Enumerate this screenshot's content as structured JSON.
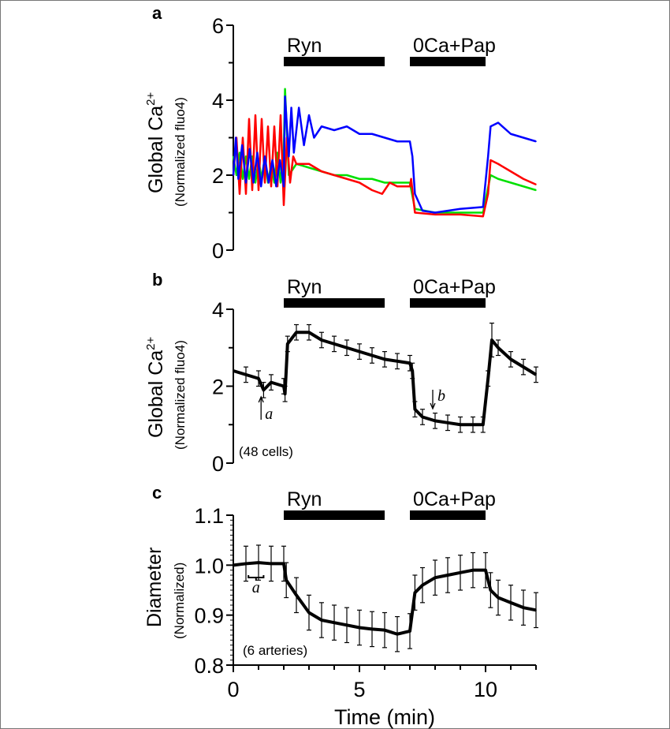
{
  "chart_data": [
    {
      "panel": "a",
      "type": "line",
      "ylabel": "Global Ca",
      "ylabel_sup": "2+",
      "ylabel_sub": "(Normalized fluo4)",
      "xlim": [
        0,
        12
      ],
      "ylim": [
        0,
        6
      ],
      "yticks": [
        "0",
        "2",
        "4",
        "6"
      ],
      "conditions": [
        {
          "label": "Ryn",
          "start": 2,
          "end": 6
        },
        {
          "label": "0Ca+Pap",
          "start": 7,
          "end": 10
        }
      ],
      "series": [
        {
          "color": "#00e000",
          "points": [
            [
              0,
              2.5
            ],
            [
              0.125,
              2.0
            ],
            [
              0.25,
              2.6
            ],
            [
              0.375,
              1.9
            ],
            [
              0.5,
              2.5
            ],
            [
              0.625,
              1.9
            ],
            [
              0.75,
              2.5
            ],
            [
              0.875,
              1.8
            ],
            [
              1,
              2.4
            ],
            [
              1.125,
              1.9
            ],
            [
              1.25,
              2.5
            ],
            [
              1.375,
              1.8
            ],
            [
              1.5,
              2.3
            ],
            [
              1.625,
              1.8
            ],
            [
              1.75,
              2.6
            ],
            [
              1.875,
              1.8
            ],
            [
              2,
              2.7
            ],
            [
              2.05,
              4.3
            ],
            [
              2.2,
              2.0
            ],
            [
              2.5,
              2.3
            ],
            [
              3,
              2.2
            ],
            [
              3.5,
              2.1
            ],
            [
              4,
              2.0
            ],
            [
              4.5,
              2.0
            ],
            [
              5,
              1.9
            ],
            [
              5.5,
              1.9
            ],
            [
              6,
              1.8
            ],
            [
              6.5,
              1.8
            ],
            [
              7,
              1.8
            ],
            [
              7.2,
              1.1
            ],
            [
              8,
              1.0
            ],
            [
              9,
              1.0
            ],
            [
              9.9,
              1.0
            ],
            [
              10.2,
              2.0
            ],
            [
              10.5,
              1.9
            ],
            [
              11,
              1.8
            ],
            [
              11.5,
              1.7
            ],
            [
              12,
              1.6
            ]
          ]
        },
        {
          "color": "#ff0000",
          "points": [
            [
              0,
              2.0
            ],
            [
              0.125,
              3.0
            ],
            [
              0.25,
              1.5
            ],
            [
              0.375,
              3.0
            ],
            [
              0.5,
              1.5
            ],
            [
              0.625,
              3.5
            ],
            [
              0.75,
              1.6
            ],
            [
              0.875,
              3.6
            ],
            [
              1,
              1.6
            ],
            [
              1.125,
              3.5
            ],
            [
              1.25,
              1.8
            ],
            [
              1.375,
              3.3
            ],
            [
              1.5,
              1.7
            ],
            [
              1.625,
              3.3
            ],
            [
              1.75,
              1.7
            ],
            [
              1.875,
              3.6
            ],
            [
              2,
              1.2
            ],
            [
              2.125,
              3.0
            ],
            [
              2.25,
              1.8
            ],
            [
              2.375,
              2.5
            ],
            [
              2.5,
              2.3
            ],
            [
              3,
              2.3
            ],
            [
              3.5,
              2.1
            ],
            [
              4,
              2.0
            ],
            [
              4.5,
              1.9
            ],
            [
              5,
              1.8
            ],
            [
              5.5,
              1.6
            ],
            [
              5.9,
              1.5
            ],
            [
              6.2,
              1.8
            ],
            [
              6.5,
              1.7
            ],
            [
              7,
              1.7
            ],
            [
              7.05,
              1.9
            ],
            [
              7.2,
              1.0
            ],
            [
              8,
              0.95
            ],
            [
              9,
              0.95
            ],
            [
              9.9,
              0.9
            ],
            [
              10.1,
              1.5
            ],
            [
              10.2,
              2.4
            ],
            [
              10.5,
              2.3
            ],
            [
              11,
              2.1
            ],
            [
              11.5,
              1.9
            ],
            [
              12,
              1.75
            ]
          ]
        },
        {
          "color": "#0000ff",
          "points": [
            [
              0,
              2.0
            ],
            [
              0.1,
              3.0
            ],
            [
              0.2,
              1.9
            ],
            [
              0.35,
              2.8
            ],
            [
              0.5,
              1.8
            ],
            [
              0.65,
              2.7
            ],
            [
              0.8,
              1.8
            ],
            [
              0.95,
              2.6
            ],
            [
              1.1,
              1.7
            ],
            [
              1.25,
              2.5
            ],
            [
              1.4,
              1.8
            ],
            [
              1.55,
              2.4
            ],
            [
              1.7,
              1.7
            ],
            [
              1.85,
              2.4
            ],
            [
              2,
              1.7
            ],
            [
              2.05,
              4.1
            ],
            [
              2.2,
              2.5
            ],
            [
              2.3,
              3.8
            ],
            [
              2.4,
              2.6
            ],
            [
              2.6,
              3.8
            ],
            [
              2.8,
              2.8
            ],
            [
              3,
              3.6
            ],
            [
              3.2,
              3.0
            ],
            [
              3.5,
              3.3
            ],
            [
              4,
              3.2
            ],
            [
              4.5,
              3.3
            ],
            [
              5,
              3.1
            ],
            [
              5.5,
              3.1
            ],
            [
              6,
              3.0
            ],
            [
              6.5,
              2.9
            ],
            [
              7,
              2.9
            ],
            [
              7.1,
              2.5
            ],
            [
              7.2,
              1.5
            ],
            [
              7.5,
              1.05
            ],
            [
              8,
              1.0
            ],
            [
              9,
              1.1
            ],
            [
              9.9,
              1.15
            ],
            [
              10.1,
              2.5
            ],
            [
              10.2,
              3.3
            ],
            [
              10.5,
              3.4
            ],
            [
              11,
              3.1
            ],
            [
              11.5,
              3.0
            ],
            [
              12,
              2.9
            ]
          ]
        }
      ]
    },
    {
      "panel": "b",
      "type": "line",
      "ylabel": "Global Ca",
      "ylabel_sup": "2+",
      "ylabel_sub": "(Normalized fluo4)",
      "xlim": [
        0,
        12
      ],
      "ylim": [
        0,
        4
      ],
      "yticks": [
        "0",
        "2",
        "4"
      ],
      "conditions": [
        {
          "label": "Ryn",
          "start": 2,
          "end": 6
        },
        {
          "label": "0Ca+Pap",
          "start": 7,
          "end": 10
        }
      ],
      "annotation_n": "(48 cells)",
      "markers": [
        {
          "label": "a",
          "t": 1.1,
          "direction": "up"
        },
        {
          "label": "b",
          "t": 8.0,
          "direction": "down"
        }
      ],
      "series": [
        {
          "color": "#000000",
          "points": [
            [
              0,
              2.4
            ],
            [
              0.5,
              2.3
            ],
            [
              1,
              2.2
            ],
            [
              1.2,
              1.9
            ],
            [
              1.5,
              2.1
            ],
            [
              2,
              2.0
            ],
            [
              2.05,
              1.8
            ],
            [
              2.15,
              3.1
            ],
            [
              2.5,
              3.4
            ],
            [
              3,
              3.4
            ],
            [
              3.5,
              3.2
            ],
            [
              4,
              3.1
            ],
            [
              4.5,
              3.0
            ],
            [
              5,
              2.9
            ],
            [
              5.5,
              2.8
            ],
            [
              6,
              2.7
            ],
            [
              6.5,
              2.65
            ],
            [
              7,
              2.6
            ],
            [
              7.1,
              2.4
            ],
            [
              7.2,
              1.4
            ],
            [
              7.5,
              1.2
            ],
            [
              8,
              1.1
            ],
            [
              8.5,
              1.05
            ],
            [
              9,
              1.0
            ],
            [
              9.5,
              1.0
            ],
            [
              9.9,
              1.0
            ],
            [
              10.1,
              2.2
            ],
            [
              10.25,
              3.2
            ],
            [
              10.5,
              3.0
            ],
            [
              11,
              2.7
            ],
            [
              11.5,
              2.5
            ],
            [
              12,
              2.3
            ]
          ],
          "error": 0.2
        }
      ]
    },
    {
      "panel": "c",
      "type": "line",
      "ylabel": "Diameter",
      "ylabel_sub": "(Normalized)",
      "xlabel": "Time (min)",
      "xlim": [
        0,
        12
      ],
      "ylim": [
        0.8,
        1.1
      ],
      "xticks": [
        "0",
        "5",
        "10"
      ],
      "yticks": [
        "0.8",
        "0.9",
        "1.0",
        "1.1"
      ],
      "conditions": [
        {
          "label": "Ryn",
          "start": 2,
          "end": 6
        },
        {
          "label": "0Ca+Pap",
          "start": 7,
          "end": 10
        }
      ],
      "annotation_n": "(6 arteries)",
      "markers": [
        {
          "label": "a",
          "start": 0.6,
          "end": 1.2
        }
      ],
      "series": [
        {
          "color": "#000000",
          "points": [
            [
              0,
              1.0
            ],
            [
              0.5,
              1.003
            ],
            [
              1,
              1.005
            ],
            [
              1.5,
              1.003
            ],
            [
              2,
              1.003
            ],
            [
              2.1,
              0.97
            ],
            [
              2.5,
              0.94
            ],
            [
              3,
              0.905
            ],
            [
              3.5,
              0.89
            ],
            [
              4,
              0.885
            ],
            [
              4.5,
              0.88
            ],
            [
              5,
              0.875
            ],
            [
              5.5,
              0.872
            ],
            [
              6,
              0.87
            ],
            [
              6.5,
              0.862
            ],
            [
              7,
              0.868
            ],
            [
              7.2,
              0.945
            ],
            [
              7.5,
              0.96
            ],
            [
              8,
              0.975
            ],
            [
              8.5,
              0.98
            ],
            [
              9,
              0.985
            ],
            [
              9.5,
              0.99
            ],
            [
              10,
              0.99
            ],
            [
              10.2,
              0.95
            ],
            [
              10.5,
              0.935
            ],
            [
              11,
              0.925
            ],
            [
              11.5,
              0.915
            ],
            [
              12,
              0.91
            ]
          ],
          "error": 0.035
        }
      ]
    }
  ]
}
